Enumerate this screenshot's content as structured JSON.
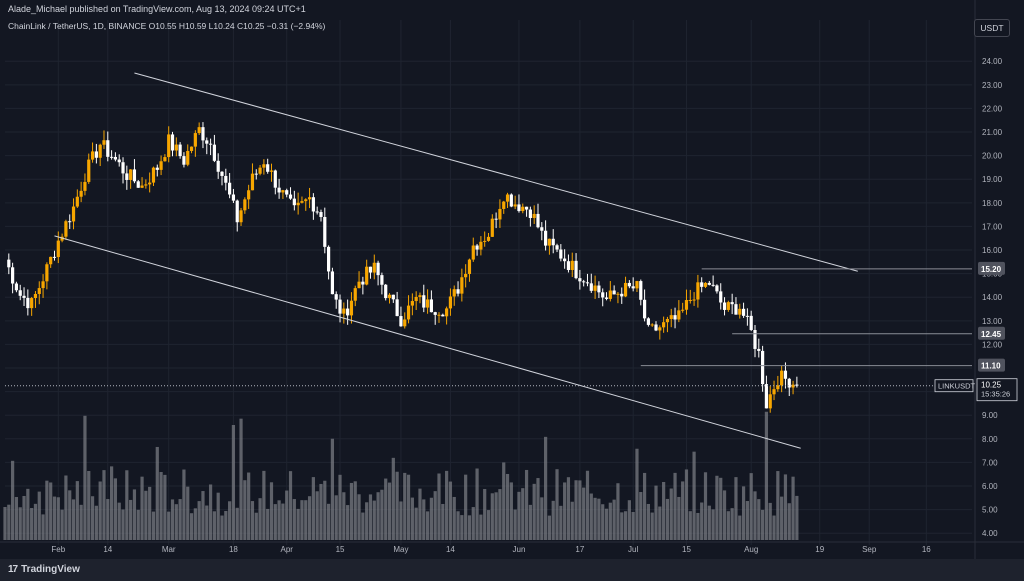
{
  "header": {
    "publisher": "Alade_Michael published on TradingView.com, Aug 13, 2024 09:24 UTC+1",
    "symbol_line": "ChainLink / TetherUS, 1D, BINANCE  O10.55  H10.59  L10.24  C10.25  −0.31 (−2.94%)",
    "currency": "USDT"
  },
  "footer": {
    "brand": "TradingView",
    "brand_mark": "17"
  },
  "colors": {
    "background": "#131722",
    "up": "#f7a600",
    "down": "#ffffff",
    "volume": "#7f8187",
    "trendline": "#d1d4dc",
    "axis_text": "#b2b5be"
  },
  "chart_data": {
    "type": "candlestick",
    "title": "ChainLink / TetherUS, 1D, BINANCE",
    "ylabel": "USDT",
    "y_ticks": [
      "24.00",
      "23.00",
      "22.00",
      "21.00",
      "20.00",
      "19.00",
      "18.00",
      "17.00",
      "16.00",
      "15.00",
      "14.00",
      "13.00",
      "12.00",
      "11.00",
      "10.00",
      "9.00",
      "8.00",
      "7.00",
      "6.00",
      "5.00",
      "4.00"
    ],
    "ylim": [
      3.5,
      24.9
    ],
    "x_ticks": [
      {
        "label": "Feb",
        "date": "2024-02-01"
      },
      {
        "label": "14",
        "date": "2024-02-14"
      },
      {
        "label": "Mar",
        "date": "2024-03-01"
      },
      {
        "label": "18",
        "date": "2024-03-18"
      },
      {
        "label": "Apr",
        "date": "2024-04-01"
      },
      {
        "label": "15",
        "date": "2024-04-15"
      },
      {
        "label": "May",
        "date": "2024-05-01"
      },
      {
        "label": "14",
        "date": "2024-05-14"
      },
      {
        "label": "Jun",
        "date": "2024-06-01"
      },
      {
        "label": "17",
        "date": "2024-06-17"
      },
      {
        "label": "Jul",
        "date": "2024-07-01"
      },
      {
        "label": "15",
        "date": "2024-07-15"
      },
      {
        "label": "Aug",
        "date": "2024-08-01"
      },
      {
        "label": "19",
        "date": "2024-08-19"
      },
      {
        "label": "Sep",
        "date": "2024-09-01"
      },
      {
        "label": "16",
        "date": "2024-09-16"
      }
    ],
    "xlim": [
      "2024-01-18",
      "2024-09-28"
    ],
    "series": [
      {
        "name": "LINKUSDT",
        "type": "candlestick",
        "closes": [
          {
            "date": "2024-01-18",
            "close": 15.6
          },
          {
            "date": "2024-01-22",
            "close": 14.1
          },
          {
            "date": "2024-01-25",
            "close": 13.7
          },
          {
            "date": "2024-01-29",
            "close": 15.2
          },
          {
            "date": "2024-02-01",
            "close": 16.4
          },
          {
            "date": "2024-02-05",
            "close": 17.8
          },
          {
            "date": "2024-02-08",
            "close": 19.2
          },
          {
            "date": "2024-02-12",
            "close": 20.5
          },
          {
            "date": "2024-02-15",
            "close": 20.0
          },
          {
            "date": "2024-02-19",
            "close": 19.2
          },
          {
            "date": "2024-02-23",
            "close": 18.7
          },
          {
            "date": "2024-02-27",
            "close": 19.5
          },
          {
            "date": "2024-03-01",
            "close": 20.6
          },
          {
            "date": "2024-03-05",
            "close": 19.8
          },
          {
            "date": "2024-03-09",
            "close": 21.1
          },
          {
            "date": "2024-03-12",
            "close": 20.5
          },
          {
            "date": "2024-03-15",
            "close": 19.2
          },
          {
            "date": "2024-03-19",
            "close": 17.3
          },
          {
            "date": "2024-03-23",
            "close": 19.0
          },
          {
            "date": "2024-03-26",
            "close": 19.8
          },
          {
            "date": "2024-03-30",
            "close": 18.6
          },
          {
            "date": "2024-04-03",
            "close": 17.6
          },
          {
            "date": "2024-04-07",
            "close": 18.2
          },
          {
            "date": "2024-04-10",
            "close": 17.5
          },
          {
            "date": "2024-04-13",
            "close": 14.0
          },
          {
            "date": "2024-04-16",
            "close": 13.2
          },
          {
            "date": "2024-04-20",
            "close": 14.7
          },
          {
            "date": "2024-04-24",
            "close": 15.2
          },
          {
            "date": "2024-04-28",
            "close": 13.9
          },
          {
            "date": "2024-05-01",
            "close": 13.1
          },
          {
            "date": "2024-05-05",
            "close": 13.9
          },
          {
            "date": "2024-05-09",
            "close": 13.6
          },
          {
            "date": "2024-05-13",
            "close": 13.5
          },
          {
            "date": "2024-05-16",
            "close": 14.4
          },
          {
            "date": "2024-05-20",
            "close": 16.2
          },
          {
            "date": "2024-05-24",
            "close": 16.7
          },
          {
            "date": "2024-05-28",
            "close": 18.4
          },
          {
            "date": "2024-05-31",
            "close": 18.0
          },
          {
            "date": "2024-06-04",
            "close": 17.7
          },
          {
            "date": "2024-06-08",
            "close": 16.3
          },
          {
            "date": "2024-06-12",
            "close": 15.8
          },
          {
            "date": "2024-06-16",
            "close": 15.1
          },
          {
            "date": "2024-06-20",
            "close": 14.6
          },
          {
            "date": "2024-06-24",
            "close": 13.9
          },
          {
            "date": "2024-06-28",
            "close": 14.3
          },
          {
            "date": "2024-07-02",
            "close": 14.4
          },
          {
            "date": "2024-07-05",
            "close": 12.5
          },
          {
            "date": "2024-07-09",
            "close": 12.8
          },
          {
            "date": "2024-07-13",
            "close": 13.1
          },
          {
            "date": "2024-07-17",
            "close": 14.2
          },
          {
            "date": "2024-07-21",
            "close": 14.6
          },
          {
            "date": "2024-07-25",
            "close": 13.5
          },
          {
            "date": "2024-07-29",
            "close": 13.6
          },
          {
            "date": "2024-08-01",
            "close": 12.5
          },
          {
            "date": "2024-08-03",
            "close": 11.6
          },
          {
            "date": "2024-08-05",
            "close": 9.5
          },
          {
            "date": "2024-08-08",
            "close": 10.6
          },
          {
            "date": "2024-08-11",
            "close": 10.5
          },
          {
            "date": "2024-08-13",
            "close": 10.25
          }
        ]
      }
    ],
    "horizontal_levels": [
      {
        "label": "15.20",
        "value": 15.2,
        "from": "2024-07-19"
      },
      {
        "label": "12.45",
        "value": 12.45,
        "from": "2024-07-27"
      },
      {
        "label": "11.10",
        "value": 11.1,
        "from": "2024-07-03"
      }
    ],
    "trendlines": [
      {
        "name": "upper channel",
        "from": {
          "date": "2024-02-21",
          "value": 23.5
        },
        "to": {
          "date": "2024-08-29",
          "value": 15.1
        }
      },
      {
        "name": "lower channel",
        "from": {
          "date": "2024-01-31",
          "value": 16.6
        },
        "to": {
          "date": "2024-08-14",
          "value": 7.6
        }
      }
    ],
    "current": {
      "symbol": "LINKUSDT",
      "price": "10.25",
      "countdown": "15:35:26"
    }
  }
}
